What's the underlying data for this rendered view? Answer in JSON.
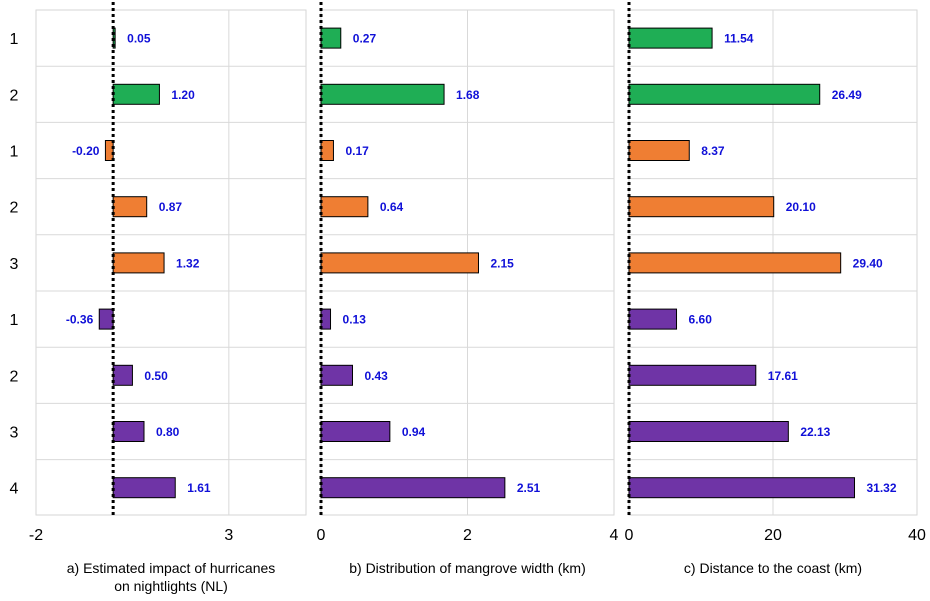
{
  "colors": {
    "group_1": "#1fae55",
    "group_2": "#ef7e33",
    "group_3": "#6f34a6",
    "value_label": "#1010d8",
    "panel_border": "#d6d6d6",
    "gridline": "#d9d9d9"
  },
  "chart_data": [
    {
      "type": "bar",
      "orientation": "horizontal",
      "title": "a) Estimated impact of hurricanes on nightlights (NL)",
      "title_lines": [
        "a) Estimated impact of hurricanes",
        "on nightlights (NL)"
      ],
      "categories": [
        "1",
        "2",
        "1",
        "2",
        "3",
        "1",
        "2",
        "3",
        "4"
      ],
      "values": [
        0.05,
        1.2,
        -0.2,
        0.87,
        1.32,
        -0.36,
        0.5,
        0.8,
        1.61
      ],
      "value_labels": [
        "0.05",
        "1.20",
        "-0.20",
        "0.87",
        "1.32",
        "-0.36",
        "0.50",
        "0.80",
        "1.61"
      ],
      "bar_groups": [
        "group_1",
        "group_1",
        "group_2",
        "group_2",
        "group_2",
        "group_3",
        "group_3",
        "group_3",
        "group_3"
      ],
      "xlim": [
        -2,
        5
      ],
      "xticks": [
        -2,
        3
      ],
      "xtick_labels": [
        "-2",
        "3"
      ],
      "gridlines": [
        3
      ],
      "reference_line": 0,
      "reference_line_style": "dotted",
      "grid": true
    },
    {
      "type": "bar",
      "orientation": "horizontal",
      "title": "b) Distribution of mangrove width (km)",
      "title_lines": [
        "b) Distribution of mangrove width (km)"
      ],
      "categories": [
        "1",
        "2",
        "1",
        "2",
        "3",
        "1",
        "2",
        "3",
        "4"
      ],
      "values": [
        0.27,
        1.68,
        0.17,
        0.64,
        2.15,
        0.13,
        0.43,
        0.94,
        2.51
      ],
      "value_labels": [
        "0.27",
        "1.68",
        "0.17",
        "0.64",
        "2.15",
        "0.13",
        "0.43",
        "0.94",
        "2.51"
      ],
      "bar_groups": [
        "group_1",
        "group_1",
        "group_2",
        "group_2",
        "group_2",
        "group_3",
        "group_3",
        "group_3",
        "group_3"
      ],
      "xlim": [
        0,
        4
      ],
      "xticks": [
        0,
        2,
        4
      ],
      "xtick_labels": [
        "0",
        "2",
        "4"
      ],
      "gridlines": [
        2
      ],
      "reference_line": 0,
      "reference_line_style": "dotted",
      "grid": true
    },
    {
      "type": "bar",
      "orientation": "horizontal",
      "title": "c) Distance to the coast (km)",
      "title_lines": [
        "c) Distance to the coast (km)"
      ],
      "categories": [
        "1",
        "2",
        "1",
        "2",
        "3",
        "1",
        "2",
        "3",
        "4"
      ],
      "values": [
        11.54,
        26.49,
        8.37,
        20.1,
        29.4,
        6.6,
        17.61,
        22.13,
        31.32
      ],
      "value_labels": [
        "11.54",
        "26.49",
        "8.37",
        "20.10",
        "29.40",
        "6.60",
        "17.61",
        "22.13",
        "31.32"
      ],
      "bar_groups": [
        "group_1",
        "group_1",
        "group_2",
        "group_2",
        "group_2",
        "group_3",
        "group_3",
        "group_3",
        "group_3"
      ],
      "xlim": [
        0,
        40
      ],
      "xticks": [
        0,
        20,
        40
      ],
      "xtick_labels": [
        "0",
        "20",
        "40"
      ],
      "gridlines": [
        20
      ],
      "reference_line": 0,
      "reference_line_style": "dotted",
      "grid": true
    }
  ]
}
